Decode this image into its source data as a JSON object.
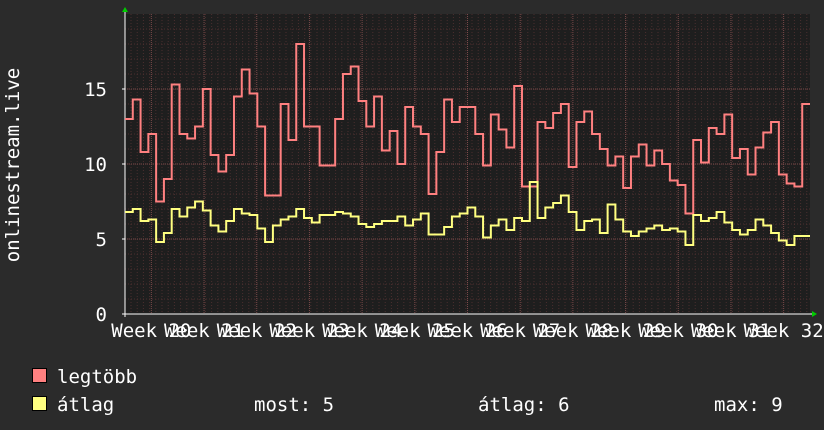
{
  "chart_data": {
    "type": "line",
    "ylabel": "onlinestream.live",
    "ylim": [
      0,
      20
    ],
    "yticks": [
      0,
      5,
      10,
      15
    ],
    "xticks": [
      "Week 20",
      "Week 21",
      "Week 22",
      "Week 23",
      "Week 24",
      "Week 25",
      "Week 26",
      "Week 27",
      "Week 28",
      "Week 29",
      "Week 30",
      "Week 31",
      "Week 32"
    ],
    "grid": true,
    "series": [
      {
        "name": "legtöbb",
        "color": "#ff8080",
        "values": [
          13,
          14.3,
          10.8,
          12,
          7.5,
          9,
          15.3,
          12,
          11.7,
          12.5,
          15,
          10.6,
          9.5,
          10.6,
          14.5,
          16.3,
          14.7,
          12.5,
          7.9,
          7.9,
          14,
          11.6,
          18,
          12.5,
          12.5,
          9.9,
          9.9,
          13,
          16,
          16.5,
          14.2,
          12.5,
          14.5,
          10.9,
          12.2,
          10,
          13.8,
          12.5,
          12,
          8,
          10.8,
          14.3,
          12.8,
          13.8,
          13.8,
          12,
          9.9,
          13.3,
          12.3,
          11.1,
          15.2,
          8.5,
          8.5,
          12.8,
          12.4,
          13.4,
          14,
          9.8,
          12.8,
          13.5,
          12,
          11,
          9.9,
          10.5,
          8.4,
          10.5,
          11.3,
          9.9,
          10.9,
          10,
          8.9,
          8.6,
          6.7,
          11.6,
          10.1,
          12.4,
          12,
          13.3,
          10.4,
          11,
          9.3,
          11.1,
          12.1,
          12.8,
          9.3,
          8.7,
          8.5,
          14
        ]
      },
      {
        "name": "átlag",
        "color": "#ffff80",
        "values": [
          6.8,
          7,
          6.2,
          6.3,
          4.8,
          5.4,
          7,
          6.5,
          7.1,
          7.5,
          6.9,
          5.9,
          5.5,
          6.2,
          7,
          6.7,
          6.6,
          5.7,
          4.8,
          5.9,
          6.3,
          6.5,
          7,
          6.4,
          6.1,
          6.6,
          6.6,
          6.8,
          6.7,
          6.5,
          6,
          5.8,
          6,
          6.2,
          6.2,
          6.5,
          5.9,
          6.3,
          6.7,
          5.3,
          5.3,
          5.8,
          6.5,
          6.7,
          7.1,
          6.5,
          5.1,
          5.9,
          6.3,
          5.6,
          6.4,
          6.2,
          8.8,
          6.4,
          7.1,
          7.4,
          7.9,
          6.8,
          5.6,
          6.2,
          6.3,
          5.4,
          7.3,
          6.3,
          5.5,
          5.2,
          5.5,
          5.7,
          5.9,
          5.6,
          5.7,
          5.5,
          4.6,
          6.6,
          6.2,
          6.4,
          6.8,
          6.1,
          5.6,
          5.3,
          5.6,
          6.3,
          5.9,
          5.4,
          4.9,
          4.6,
          5.2,
          5.2
        ]
      }
    ]
  },
  "legend": {
    "max_label": "legtöbb",
    "avg_label": "átlag",
    "stats": {
      "current": "most: 5",
      "average": "átlag: 6",
      "maximum": "max: 9"
    }
  }
}
